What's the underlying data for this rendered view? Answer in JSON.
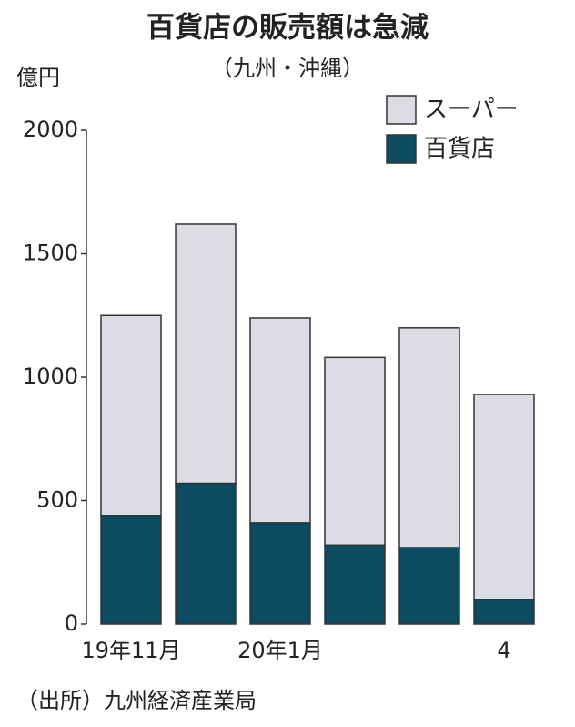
{
  "chart_data": {
    "type": "stacked-bar",
    "title": "百貨店の販売額は急減",
    "subtitle": "（九州・沖縄）",
    "y_unit": "億円",
    "source": "（出所）九州経済産業局",
    "categories": [
      "19年11月",
      null,
      "20年1月",
      null,
      null,
      "4"
    ],
    "series": [
      {
        "name": "百貨店",
        "color": "#0d4c60",
        "values": [
          440,
          570,
          410,
          320,
          310,
          100
        ]
      },
      {
        "name": "スーパー",
        "color": "#dcdce4",
        "values": [
          810,
          1050,
          830,
          760,
          890,
          830
        ]
      }
    ],
    "ylim": [
      0,
      2000
    ],
    "yticks": [
      0,
      500,
      1000,
      1500,
      2000
    ]
  }
}
